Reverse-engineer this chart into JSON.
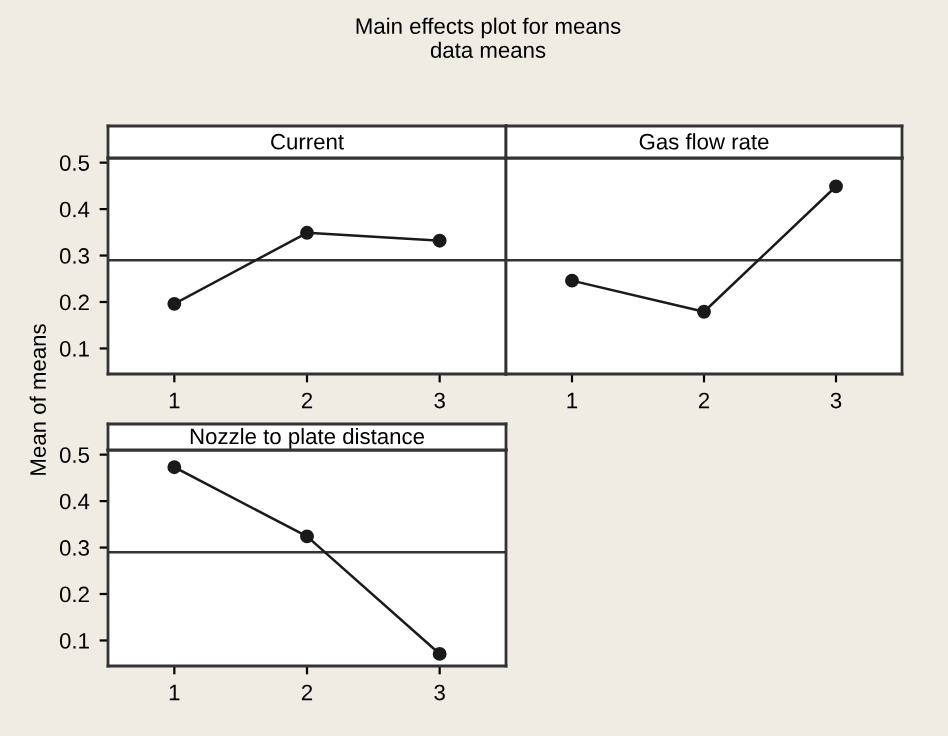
{
  "chart_data": [
    {
      "type": "line",
      "title": "Current",
      "annotations": [
        "Main effects plot for means",
        "data means"
      ],
      "ylabel": "Mean of means",
      "categories": [
        "1",
        "2",
        "3"
      ],
      "series": [
        {
          "color": "#1a1a1a",
          "values": [
            0.196,
            0.349,
            0.332
          ]
        }
      ],
      "ylim": [
        0.045,
        0.51
      ],
      "yticks": [
        0.1,
        0.2,
        0.3,
        0.4,
        0.5
      ],
      "ref_lines": [
        {
          "axis": "y",
          "value": 0.29,
          "color": "#333333"
        }
      ],
      "marker": "circle",
      "line_style": "solid",
      "grid": false
    },
    {
      "type": "line",
      "title": "Gas flow rate",
      "categories": [
        "1",
        "2",
        "3"
      ],
      "series": [
        {
          "color": "#1a1a1a",
          "values": [
            0.246,
            0.179,
            0.449
          ]
        }
      ],
      "ylim": [
        0.045,
        0.51
      ],
      "yticks": [
        0.1,
        0.2,
        0.3,
        0.4,
        0.5
      ],
      "ref_lines": [
        {
          "axis": "y",
          "value": 0.29,
          "color": "#333333"
        }
      ],
      "marker": "circle",
      "line_style": "solid",
      "grid": false,
      "tick_labels": "x"
    },
    {
      "type": "line",
      "title": "Nozzle to plate distance",
      "categories": [
        "1",
        "2",
        "3"
      ],
      "series": [
        {
          "color": "#1a1a1a",
          "values": [
            0.473,
            0.324,
            0.071
          ]
        }
      ],
      "ylim": [
        0.045,
        0.51
      ],
      "yticks": [
        0.1,
        0.2,
        0.3,
        0.4,
        0.5
      ],
      "ref_lines": [
        {
          "axis": "y",
          "value": 0.29,
          "color": "#333333"
        }
      ],
      "marker": "circle",
      "line_style": "solid",
      "grid": false
    }
  ]
}
